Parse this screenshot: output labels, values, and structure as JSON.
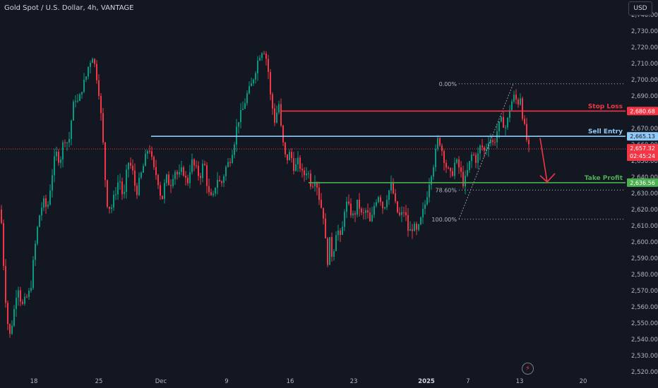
{
  "header": {
    "title": "Gold Spot / U.S. Dollar, 4h, VANTAGE",
    "currency_button": "USD"
  },
  "chart_data": {
    "type": "candlestick",
    "symbol": "Gold Spot / U.S. Dollar",
    "interval": "4h",
    "exchange": "VANTAGE",
    "currency": "USD",
    "ylim": [
      2518,
      2748
    ],
    "y_ticks": [
      "2,520.00",
      "2,530.00",
      "2,540.00",
      "2,550.00",
      "2,560.00",
      "2,570.00",
      "2,580.00",
      "2,590.00",
      "2,600.00",
      "2,610.00",
      "2,620.00",
      "2,630.00",
      "2,640.00",
      "2,650.00",
      "2,660.00",
      "2,670.00",
      "2,680.00",
      "2,690.00",
      "2,700.00",
      "2,710.00",
      "2,720.00",
      "2,730.00",
      "2,740.00"
    ],
    "x_ticks": [
      "18",
      "25",
      "Dec",
      "9",
      "16",
      "23",
      "2025",
      "7",
      "13",
      "20"
    ],
    "close_path": [
      [
        0,
        2620
      ],
      [
        6,
        2570
      ],
      [
        12,
        2540
      ],
      [
        18,
        2555
      ],
      [
        24,
        2575
      ],
      [
        30,
        2560
      ],
      [
        36,
        2565
      ],
      [
        42,
        2570
      ],
      [
        48,
        2595
      ],
      [
        54,
        2615
      ],
      [
        60,
        2625
      ],
      [
        66,
        2620
      ],
      [
        72,
        2640
      ],
      [
        78,
        2655
      ],
      [
        84,
        2650
      ],
      [
        90,
        2665
      ],
      [
        96,
        2660
      ],
      [
        100,
        2675
      ],
      [
        105,
        2690
      ],
      [
        110,
        2685
      ],
      [
        115,
        2695
      ],
      [
        120,
        2700
      ],
      [
        125,
        2710
      ],
      [
        130,
        2715
      ],
      [
        135,
        2705
      ],
      [
        140,
        2690
      ],
      [
        145,
        2660
      ],
      [
        150,
        2625
      ],
      [
        156,
        2620
      ],
      [
        162,
        2630
      ],
      [
        168,
        2640
      ],
      [
        174,
        2625
      ],
      [
        180,
        2650
      ],
      [
        186,
        2645
      ],
      [
        192,
        2630
      ],
      [
        198,
        2640
      ],
      [
        204,
        2650
      ],
      [
        210,
        2660
      ],
      [
        216,
        2645
      ],
      [
        222,
        2640
      ],
      [
        228,
        2625
      ],
      [
        234,
        2640
      ],
      [
        240,
        2635
      ],
      [
        246,
        2645
      ],
      [
        252,
        2640
      ],
      [
        258,
        2645
      ],
      [
        264,
        2635
      ],
      [
        270,
        2650
      ],
      [
        276,
        2645
      ],
      [
        282,
        2640
      ],
      [
        288,
        2650
      ],
      [
        294,
        2630
      ],
      [
        300,
        2625
      ],
      [
        306,
        2640
      ],
      [
        312,
        2635
      ],
      [
        318,
        2645
      ],
      [
        324,
        2650
      ],
      [
        330,
        2660
      ],
      [
        336,
        2675
      ],
      [
        342,
        2680
      ],
      [
        348,
        2690
      ],
      [
        354,
        2695
      ],
      [
        360,
        2705
      ],
      [
        366,
        2715
      ],
      [
        372,
        2720
      ],
      [
        378,
        2710
      ],
      [
        382,
        2690
      ],
      [
        388,
        2675
      ],
      [
        394,
        2685
      ],
      [
        398,
        2665
      ],
      [
        404,
        2650
      ],
      [
        410,
        2655
      ],
      [
        416,
        2645
      ],
      [
        422,
        2650
      ],
      [
        428,
        2640
      ],
      [
        434,
        2645
      ],
      [
        440,
        2635
      ],
      [
        446,
        2640
      ],
      [
        452,
        2625
      ],
      [
        458,
        2615
      ],
      [
        462,
        2585
      ],
      [
        466,
        2600
      ],
      [
        470,
        2590
      ],
      [
        476,
        2610
      ],
      [
        482,
        2600
      ],
      [
        488,
        2625
      ],
      [
        494,
        2620
      ],
      [
        500,
        2615
      ],
      [
        506,
        2625
      ],
      [
        512,
        2615
      ],
      [
        518,
        2620
      ],
      [
        524,
        2610
      ],
      [
        530,
        2625
      ],
      [
        536,
        2630
      ],
      [
        542,
        2620
      ],
      [
        548,
        2630
      ],
      [
        554,
        2635
      ],
      [
        560,
        2620
      ],
      [
        566,
        2615
      ],
      [
        572,
        2620
      ],
      [
        578,
        2605
      ],
      [
        584,
        2610
      ],
      [
        590,
        2605
      ],
      [
        596,
        2615
      ],
      [
        602,
        2625
      ],
      [
        608,
        2640
      ],
      [
        614,
        2650
      ],
      [
        620,
        2665
      ],
      [
        626,
        2655
      ],
      [
        632,
        2645
      ],
      [
        638,
        2640
      ],
      [
        644,
        2650
      ],
      [
        650,
        2645
      ],
      [
        656,
        2635
      ],
      [
        662,
        2645
      ],
      [
        668,
        2655
      ],
      [
        674,
        2650
      ],
      [
        680,
        2660
      ],
      [
        686,
        2655
      ],
      [
        692,
        2665
      ],
      [
        698,
        2660
      ],
      [
        704,
        2670
      ],
      [
        710,
        2675
      ],
      [
        716,
        2670
      ],
      [
        722,
        2685
      ],
      [
        728,
        2690
      ],
      [
        732,
        2685
      ],
      [
        736,
        2690
      ],
      [
        740,
        2675
      ],
      [
        744,
        2665
      ],
      [
        748,
        2657.32
      ]
    ],
    "fibonacci": [
      {
        "label": "0.00%",
        "price": 2697.5
      },
      {
        "label": "78.60%",
        "price": 2632
      },
      {
        "label": "100.00%",
        "price": 2614
      }
    ],
    "levels": [
      {
        "name": "Stop Loss",
        "price": 2680.68,
        "price_label": "2,680.68",
        "color": "#f23645"
      },
      {
        "name": "Sell Entry",
        "price": 2665.13,
        "price_label": "2,665.13",
        "color": "#90caf9"
      },
      {
        "name": "Take Profit",
        "price": 2636.56,
        "price_label": "2,636.56",
        "color": "#4caf50"
      }
    ],
    "last_price": {
      "price": 2657.32,
      "price_label": "2,657.32",
      "countdown": "02:45:24",
      "color": "#f23645"
    },
    "colors": {
      "up": "#089981",
      "down": "#f23645",
      "background": "#131722",
      "text": "#b2b5be"
    }
  }
}
